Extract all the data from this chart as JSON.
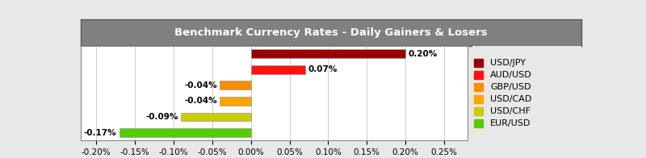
{
  "title": "Benchmark Currency Rates - Daily Gainers & Losers",
  "categories": [
    "USD/JPY",
    "AUD/USD",
    "GBP/USD",
    "USD/CAD",
    "USD/CHF",
    "EUR/USD"
  ],
  "values": [
    0.002,
    0.0007,
    -0.0004,
    -0.0004,
    -0.0009,
    -0.0017
  ],
  "bar_colors": [
    "#990000",
    "#FF1111",
    "#FF8C00",
    "#FFA500",
    "#CCCC00",
    "#55CC00"
  ],
  "labels": [
    "0.20%",
    "0.07%",
    "-0.04%",
    "-0.04%",
    "-0.09%",
    "-0.17%"
  ],
  "xlim": [
    -0.0022,
    0.0028
  ],
  "xticks": [
    -0.002,
    -0.0015,
    -0.001,
    -0.0005,
    0.0,
    0.0005,
    0.001,
    0.0015,
    0.002,
    0.0025
  ],
  "xtick_labels": [
    "-0.20%",
    "-0.15%",
    "-0.10%",
    "-0.05%",
    "0.00%",
    "0.05%",
    "0.10%",
    "0.15%",
    "0.20%",
    "0.25%"
  ],
  "title_bg_color": "#808080",
  "title_fg_color": "#FFFFFF",
  "plot_bg_color": "#FFFFFF",
  "fig_bg_color": "#E8E8E8",
  "bar_height": 0.55,
  "legend_labels": [
    "USD/JPY",
    "AUD/USD",
    "GBP/USD",
    "USD/CAD",
    "USD/CHF",
    "EUR/USD"
  ],
  "legend_colors": [
    "#990000",
    "#FF1111",
    "#FF8C00",
    "#FFA500",
    "#CCCC00",
    "#55CC00"
  ],
  "label_fontsize": 7.5,
  "tick_fontsize": 7.5
}
